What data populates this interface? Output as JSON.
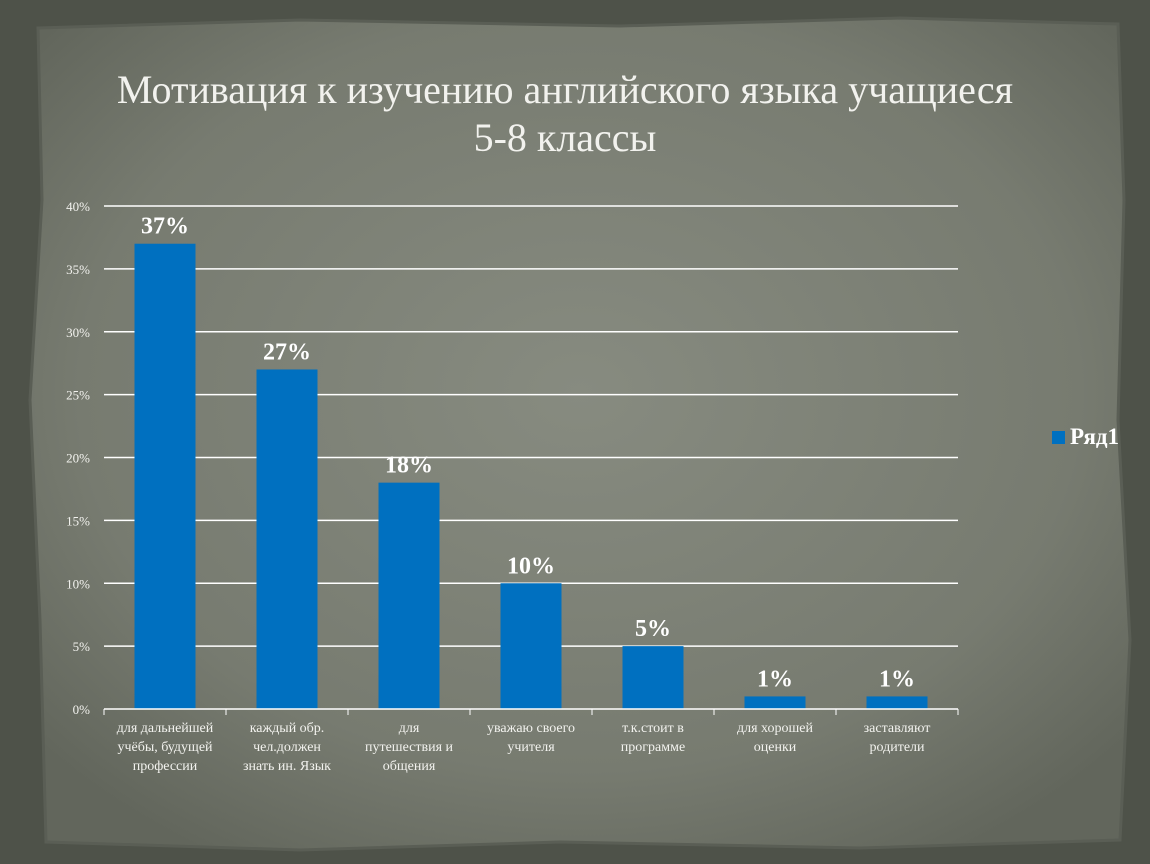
{
  "slide": {
    "title_line1": "Мотивация к изучению английского языка учащиеся",
    "title_line2": "5-8 классы"
  },
  "colors": {
    "bar": "#0070c0",
    "background": "#7b7f74",
    "grid": "#ffffff"
  },
  "chart_data": {
    "type": "bar",
    "title": "Мотивация к изучению английского языка учащиеся 5-8 классы",
    "categories": [
      [
        "для дальнейшей",
        "учёбы, будущей",
        "профессии"
      ],
      [
        "каждый обр.",
        "чел.должен",
        "знать ин. Язык"
      ],
      [
        "для",
        "путешествия и",
        "общения"
      ],
      [
        "уважаю своего",
        "учителя"
      ],
      [
        "т.к.стоит в",
        "программе"
      ],
      [
        "для хорошей",
        "оценки"
      ],
      [
        "заставляют",
        "родители"
      ]
    ],
    "series": [
      {
        "name": "Ряд1",
        "values": [
          37,
          27,
          18,
          10,
          5,
          1,
          1
        ]
      }
    ],
    "data_labels": [
      "37%",
      "27%",
      "18%",
      "10%",
      "5%",
      "1%",
      "1%"
    ],
    "y_ticks": [
      "0%",
      "5%",
      "10%",
      "15%",
      "20%",
      "25%",
      "30%",
      "35%",
      "40%"
    ],
    "ylim": [
      0,
      40
    ],
    "grid": true,
    "legend_position": "right"
  }
}
